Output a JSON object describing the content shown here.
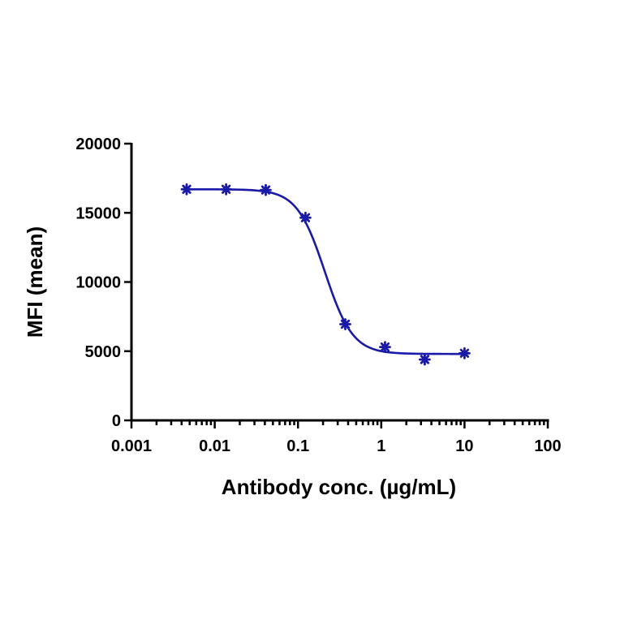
{
  "chart_data": {
    "type": "scatter",
    "xlabel": "Antibody conc. (µg/mL)",
    "ylabel": "MFI (mean)",
    "x_scale": "log",
    "xlim": [
      0.001,
      100
    ],
    "ylim": [
      0,
      20000
    ],
    "x_ticks": [
      0.001,
      0.01,
      0.1,
      1,
      10,
      100
    ],
    "x_tick_labels": [
      "0.001",
      "0.01",
      "0.1",
      "1",
      "10",
      "100"
    ],
    "y_ticks": [
      0,
      5000,
      10000,
      15000,
      20000
    ],
    "y_tick_labels": [
      "0",
      "5000",
      "10000",
      "15000",
      "20000"
    ],
    "grid": false,
    "colors": {
      "series": "#1a1aa8",
      "axis": "#000000"
    },
    "series": [
      {
        "marker": "asterisk",
        "x": [
          0.0046,
          0.0137,
          0.041,
          0.123,
          0.37,
          1.11,
          3.33,
          10
        ],
        "y": [
          16700,
          16700,
          16650,
          14650,
          6950,
          5300,
          4400,
          4850
        ]
      }
    ],
    "fit": {
      "model": "4PL",
      "top": 16700,
      "bottom": 4800,
      "ec50": 0.21,
      "hill": 2.6,
      "x_range": [
        0.0046,
        10
      ]
    }
  }
}
